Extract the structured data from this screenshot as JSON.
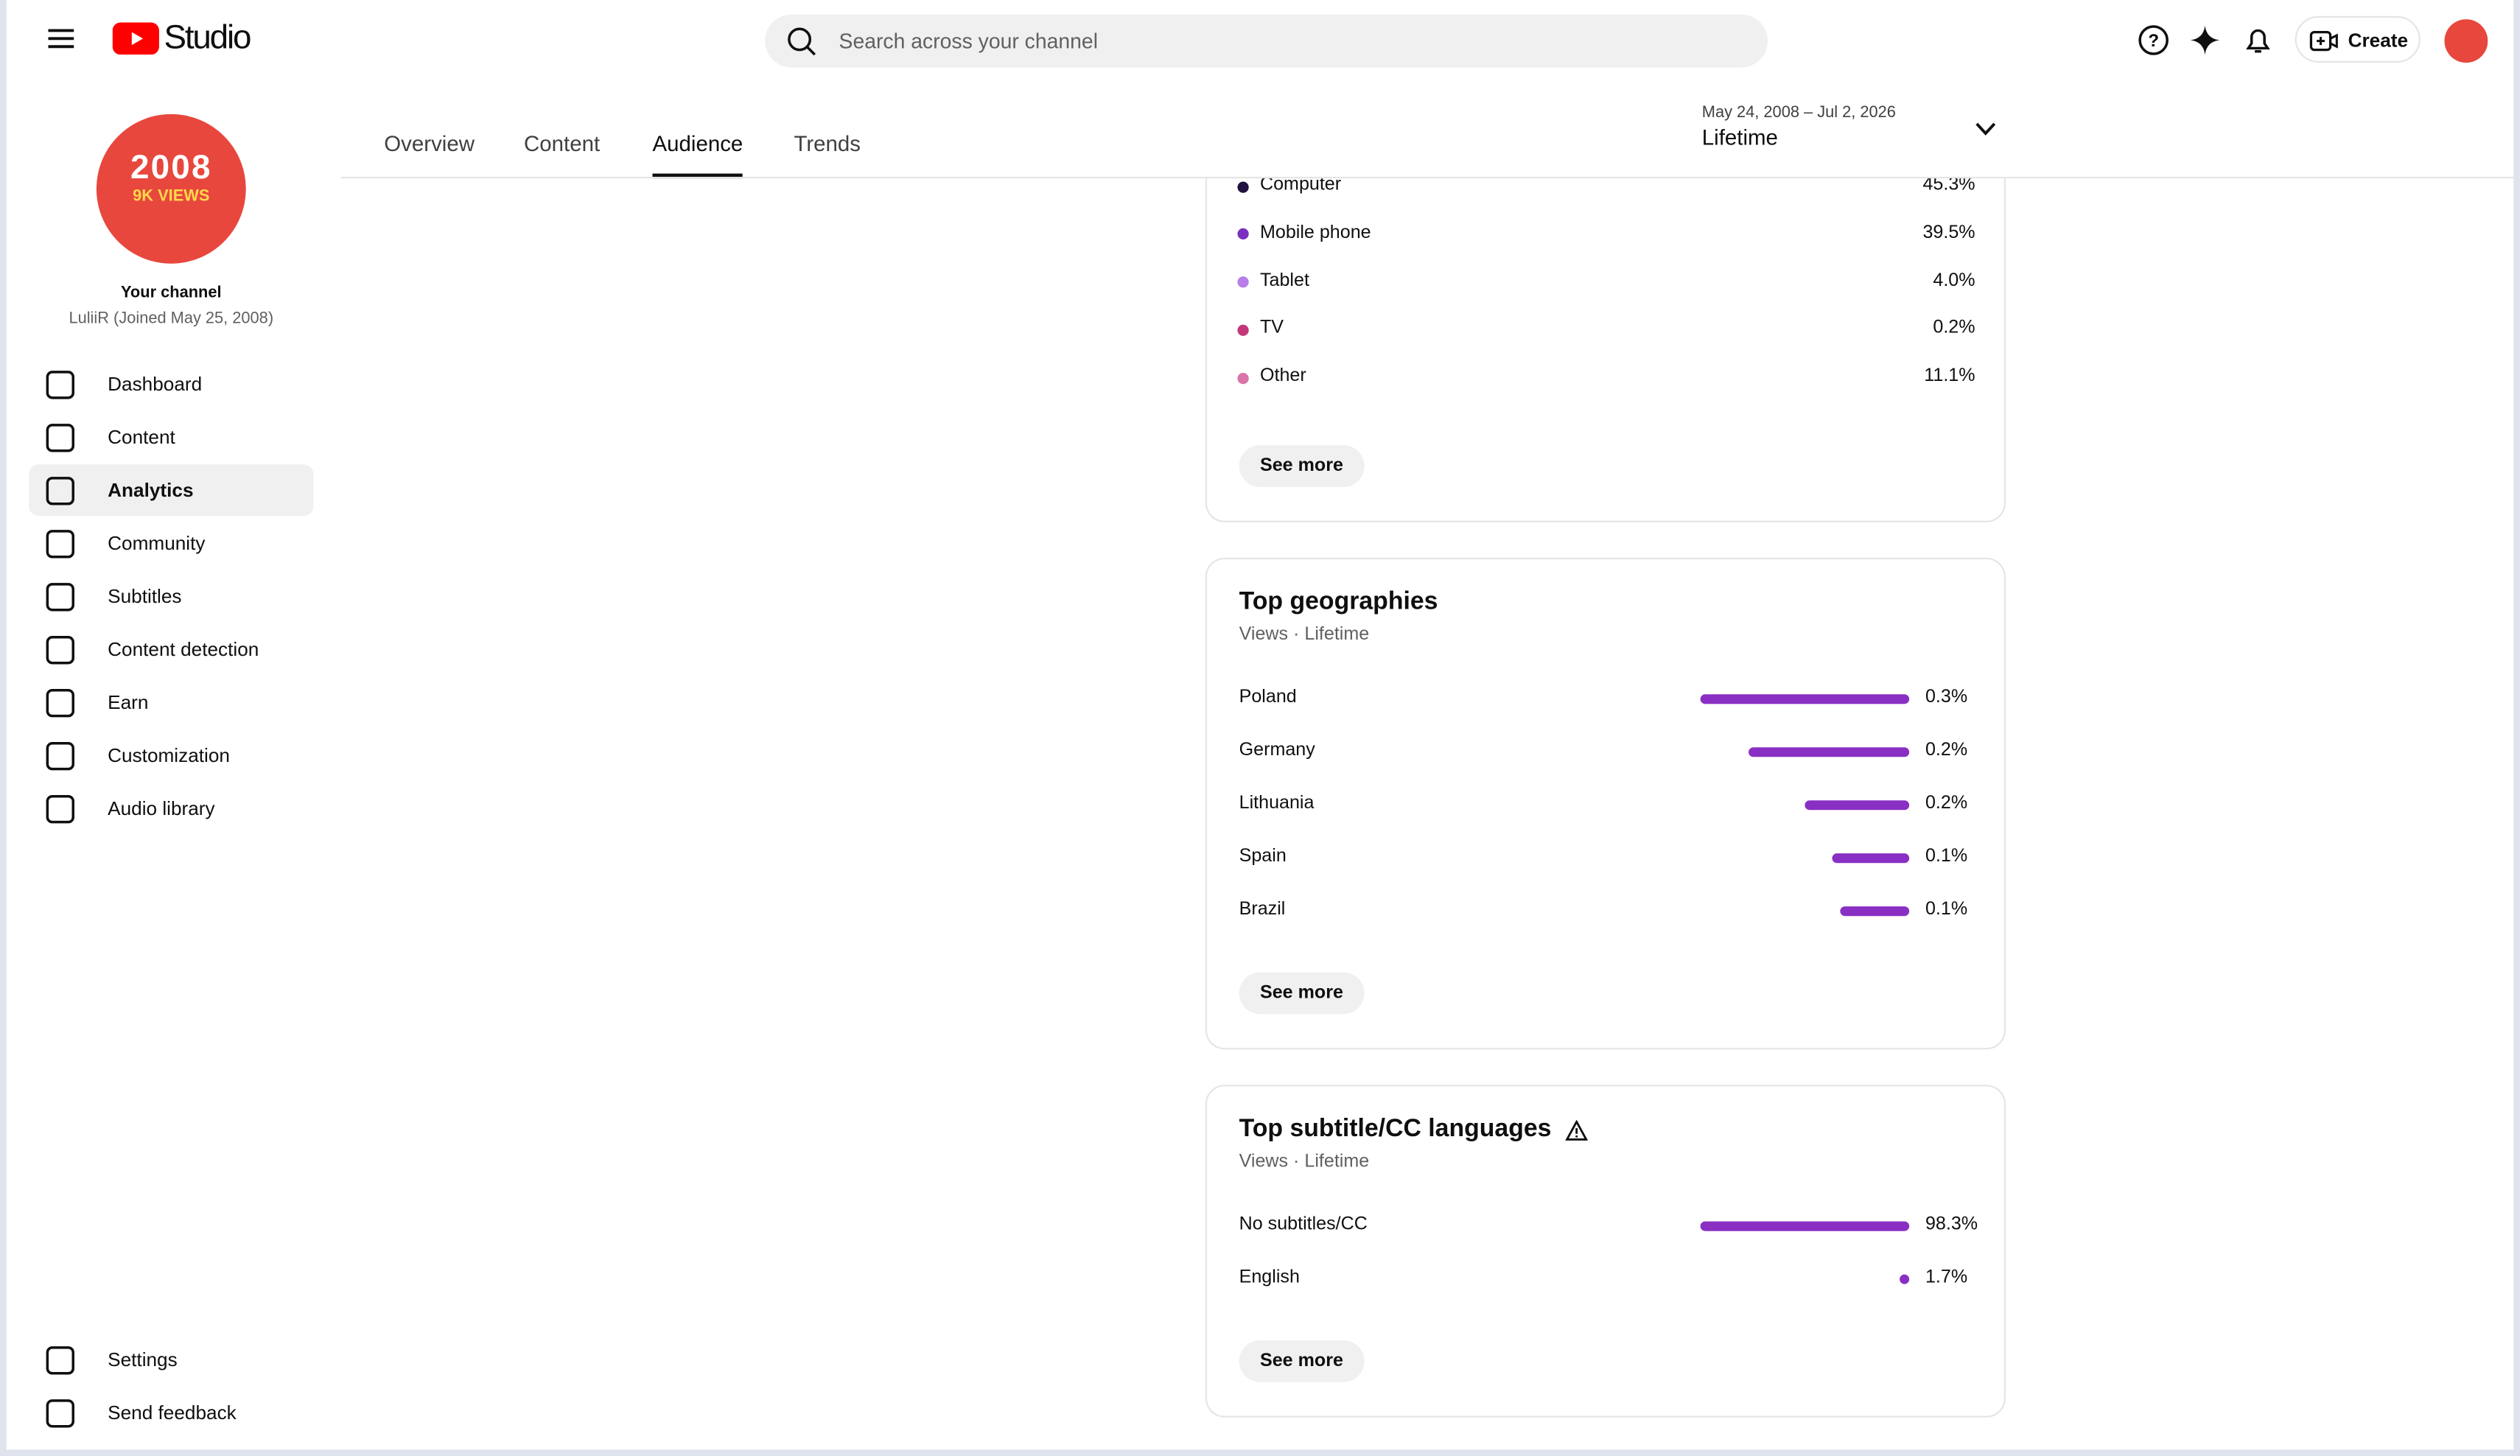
{
  "header": {
    "logo_text": "Studio",
    "search_placeholder": "Search across your channel",
    "create_button": "Create"
  },
  "channel": {
    "avatar_line1": "2008",
    "avatar_line2": "9K VIEWS",
    "title": "Your channel",
    "subtitle": "LuliiR (Joined May 25, 2008)"
  },
  "nav": [
    "Dashboard",
    "Content",
    "Analytics",
    "Community",
    "Subtitles",
    "Content detection",
    "Earn",
    "Customization",
    "Audio library"
  ],
  "nav_active": 2,
  "nav_bottom": [
    "Settings",
    "Send feedback"
  ],
  "tabs": [
    "Overview",
    "Content",
    "Audience",
    "Trends"
  ],
  "active_tab": 2,
  "date_range": {
    "range": "May 24, 2008 – Jul 2, 2026",
    "label": "Lifetime"
  },
  "device_type": {
    "items": [
      {
        "name": "Computer",
        "color": "#1f1140",
        "value": 45.3,
        "value_label": "45.3%"
      },
      {
        "name": "Mobile phone",
        "color": "#7b2fbf",
        "value": 39.5,
        "value_label": "39.5%"
      },
      {
        "name": "Tablet",
        "color": "#b77ee8",
        "value": 4.0,
        "value_label": "4.0%"
      },
      {
        "name": "TV",
        "color": "#c2387a",
        "value": 0.2,
        "value_label": "0.2%"
      },
      {
        "name": "Other",
        "color": "#d874a8",
        "value": 11.1,
        "value_label": "11.1%"
      }
    ],
    "see_more": "See more"
  },
  "top_geographies": {
    "title": "Top geographies",
    "subtitle": "Views · Lifetime",
    "bar_color": "#8a2fc4",
    "items": [
      {
        "name": "Poland",
        "value": 0.3,
        "value_label": "0.3%"
      },
      {
        "name": "Germany",
        "value": 0.23,
        "value_label": "0.2%"
      },
      {
        "name": "Lithuania",
        "value": 0.15,
        "value_label": "0.2%"
      },
      {
        "name": "Spain",
        "value": 0.11,
        "value_label": "0.1%"
      },
      {
        "name": "Brazil",
        "value": 0.1,
        "value_label": "0.1%"
      }
    ],
    "see_more": "See more"
  },
  "top_subtitle_languages": {
    "title": "Top subtitle/CC languages",
    "subtitle": "Views · Lifetime",
    "bar_color": "#8a2fc4",
    "items": [
      {
        "name": "No subtitles/CC",
        "value": 98.3,
        "value_label": "98.3%"
      },
      {
        "name": "English",
        "value": 1.7,
        "value_label": "1.7%"
      }
    ],
    "see_more": "See more"
  }
}
